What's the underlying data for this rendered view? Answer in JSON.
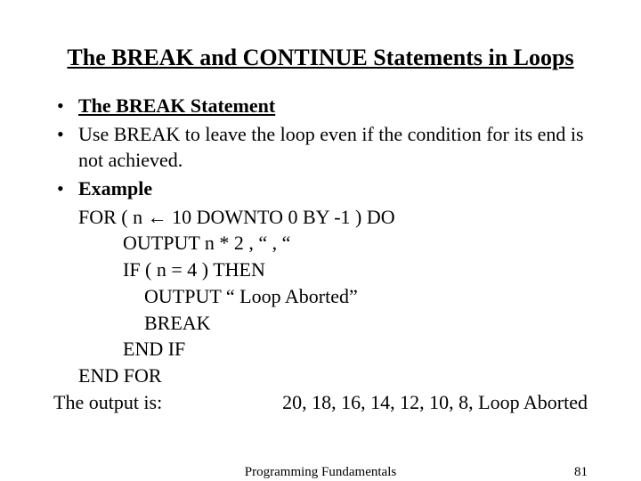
{
  "title": "The BREAK and CONTINUE Statements in Loops",
  "bullets": {
    "b1": "The BREAK Statement",
    "b2": "Use BREAK to leave the loop even if the condition for its end is not achieved.",
    "b3": "Example"
  },
  "code": {
    "l1": "FOR ( n ← 10  DOWNTO  0  BY  -1 ) DO",
    "l2": "OUTPUT  n * 2 , “ , “",
    "l3": "IF ( n = 4 ) THEN",
    "l4": "OUTPUT “ Loop Aborted”",
    "l5": "BREAK",
    "l6": "END IF",
    "l7": "END FOR"
  },
  "output_label": "The output is:",
  "output_values": "20, 18, 16, 14, 12, 10, 8, Loop Aborted",
  "footer_center": "Programming Fundamentals",
  "footer_page": "81",
  "colors": {
    "background": "#ffffff",
    "text": "#000000"
  },
  "fonts": {
    "family": "Times New Roman",
    "title_size_pt": 20,
    "body_size_pt": 17,
    "footer_size_pt": 11
  }
}
